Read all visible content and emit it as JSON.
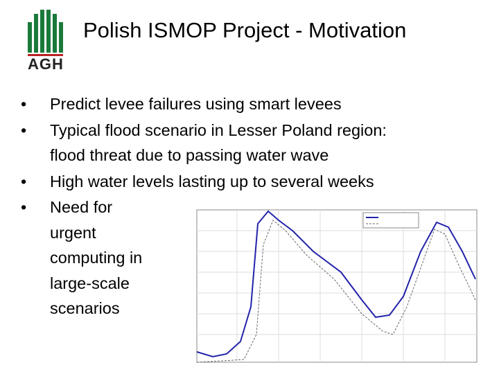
{
  "header": {
    "title": "Polish ISMOP Project - Motivation",
    "logo": "AGH"
  },
  "bullets": [
    {
      "lines": [
        "Predict levee failures using smart levees"
      ]
    },
    {
      "lines": [
        "Typical flood scenario in Lesser Poland region:",
        "flood threat due to passing water wave"
      ]
    },
    {
      "lines": [
        "High water levels lasting up to several weeks"
      ]
    },
    {
      "lines": [
        "Need for",
        "urgent",
        "computing in",
        "large-scale",
        "scenarios"
      ]
    }
  ]
}
